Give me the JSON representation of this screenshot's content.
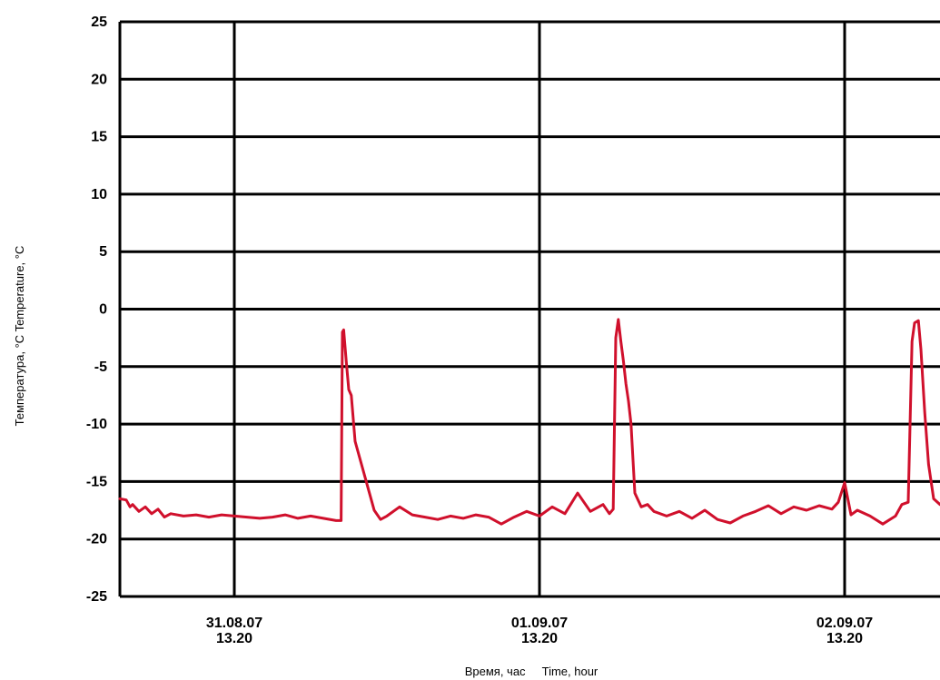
{
  "chart_data": {
    "type": "line",
    "xlabel": "Время, час     Time, hour",
    "ylabel": "Температура, °C  Temperature, °C",
    "ylim": [
      -25,
      25
    ],
    "yticks": [
      25,
      20,
      15,
      10,
      5,
      0,
      -5,
      -10,
      -15,
      -20,
      -25
    ],
    "xlim": [
      0,
      64.5
    ],
    "xticks": [
      {
        "x": 9,
        "date": "31.08.07",
        "time": "13.20"
      },
      {
        "x": 33,
        "date": "01.09.07",
        "time": "13.20"
      },
      {
        "x": 57,
        "date": "02.09.07",
        "time": "13.20"
      }
    ],
    "grid": true,
    "colors": {
      "series": "#d0102c",
      "grid": "#000000"
    },
    "series": [
      {
        "x": [
          0.0,
          0.5,
          0.8,
          1.0,
          1.5,
          2.0,
          2.5,
          3.0,
          3.5,
          4.0,
          5.0,
          6.0,
          7.0,
          8.0,
          9.0,
          10.0,
          11.0,
          12.0,
          13.0,
          14.0,
          15.0,
          16.0,
          17.0,
          17.4,
          17.5,
          17.6,
          17.8,
          18.0,
          18.2,
          18.5,
          19.0,
          19.5,
          20.0,
          20.5,
          21.0,
          22.0,
          23.0,
          24.0,
          25.0,
          26.0,
          27.0,
          28.0,
          29.0,
          30.0,
          31.0,
          32.0,
          33.0,
          34.0,
          35.0,
          36.0,
          37.0,
          38.0,
          38.5,
          38.8,
          39.0,
          39.2,
          39.4,
          39.6,
          39.8,
          40.0,
          40.2,
          40.5,
          41.0,
          41.5,
          42.0,
          43.0,
          44.0,
          45.0,
          46.0,
          47.0,
          48.0,
          49.0,
          50.0,
          51.0,
          52.0,
          53.0,
          54.0,
          55.0,
          56.0,
          56.5,
          57.0,
          57.5,
          58.0,
          59.0,
          60.0,
          61.0,
          61.5,
          62.0,
          62.3,
          62.5,
          62.8,
          63.0,
          63.3,
          63.6,
          64.0,
          64.5
        ],
        "y": [
          -16.5,
          -16.6,
          -17.2,
          -17.0,
          -17.6,
          -17.2,
          -17.8,
          -17.4,
          -18.1,
          -17.8,
          -18.0,
          -17.9,
          -18.1,
          -17.9,
          -18.0,
          -18.1,
          -18.2,
          -18.1,
          -17.9,
          -18.2,
          -18.0,
          -18.2,
          -18.4,
          -18.4,
          -2.0,
          -1.8,
          -4.5,
          -7.0,
          -7.5,
          -11.5,
          -13.5,
          -15.5,
          -17.5,
          -18.3,
          -18.0,
          -17.2,
          -17.9,
          -18.1,
          -18.3,
          -18.0,
          -18.2,
          -17.9,
          -18.1,
          -18.7,
          -18.1,
          -17.6,
          -18.0,
          -17.2,
          -17.8,
          -16.0,
          -17.6,
          -17.0,
          -17.8,
          -17.4,
          -2.5,
          -0.9,
          -2.8,
          -4.5,
          -6.5,
          -8.0,
          -10.0,
          -16.0,
          -17.2,
          -17.0,
          -17.6,
          -18.0,
          -17.6,
          -18.2,
          -17.5,
          -18.3,
          -18.6,
          -18.0,
          -17.6,
          -17.1,
          -17.8,
          -17.2,
          -17.5,
          -17.1,
          -17.4,
          -16.8,
          -15.1,
          -17.9,
          -17.5,
          -18.0,
          -18.7,
          -18.0,
          -17.0,
          -16.8,
          -2.8,
          -1.2,
          -1.0,
          -3.5,
          -9.0,
          -13.5,
          -16.5,
          -17.0
        ]
      }
    ]
  }
}
